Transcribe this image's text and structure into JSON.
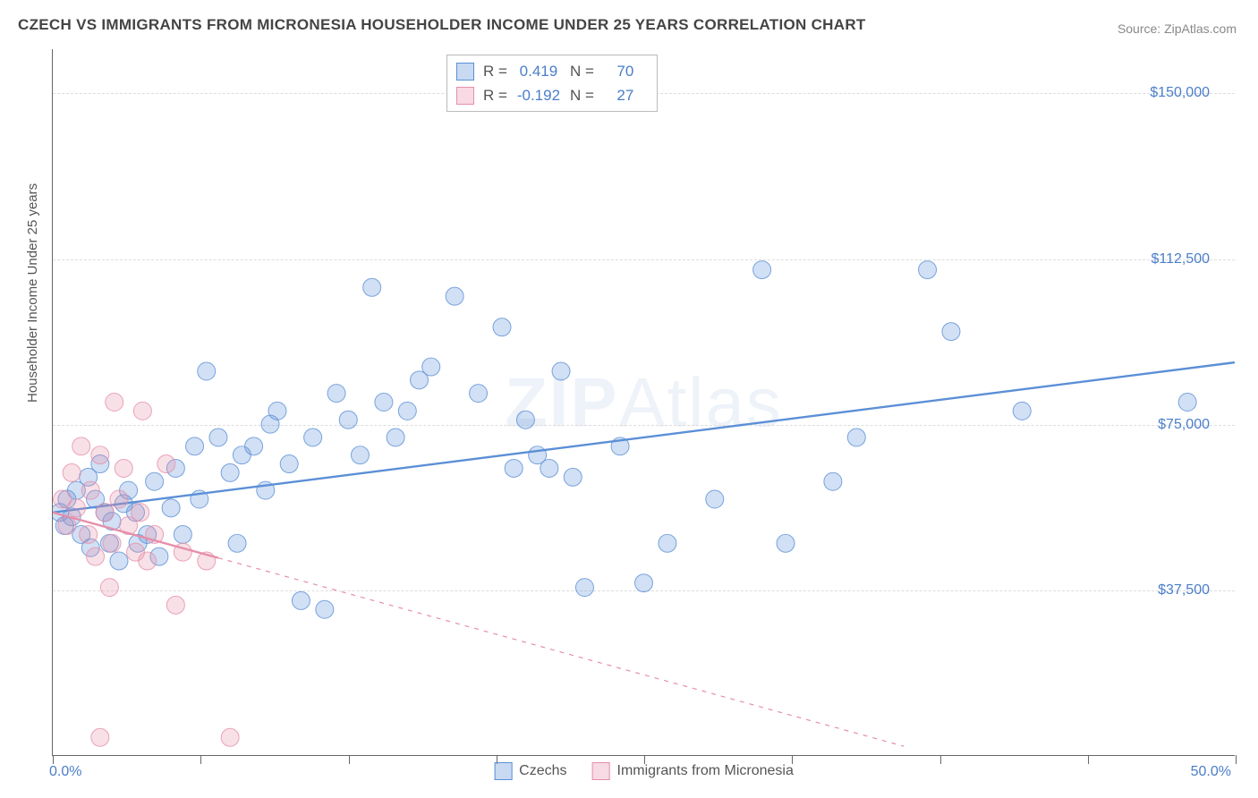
{
  "title": "CZECH VS IMMIGRANTS FROM MICRONESIA HOUSEHOLDER INCOME UNDER 25 YEARS CORRELATION CHART",
  "source": "Source: ZipAtlas.com",
  "watermark": "ZIPAtlas",
  "chart": {
    "type": "scatter",
    "ylabel": "Householder Income Under 25 years",
    "xlim": [
      0,
      50
    ],
    "ylim": [
      0,
      160000
    ],
    "x_label_min": "0.0%",
    "x_label_max": "50.0%",
    "y_ticks": [
      37500,
      75000,
      112500,
      150000
    ],
    "y_tick_labels": [
      "$37,500",
      "$75,000",
      "$112,500",
      "$150,000"
    ],
    "x_ticks_minor": [
      0,
      6.25,
      12.5,
      18.75,
      25,
      31.25,
      37.5,
      43.75,
      50
    ],
    "grid_color": "#dddddd",
    "axis_color": "#666666",
    "background_color": "#ffffff",
    "tick_color": "#4a7ec9",
    "marker_radius": 10,
    "marker_fill_opacity": 0.28,
    "marker_stroke_opacity": 0.8,
    "trend_line_width": 2.4
  },
  "series": [
    {
      "name": "Czechs",
      "color": "#5b8fd6",
      "r_label": "R =",
      "r_value": "0.419",
      "n_label": "N =",
      "n_value": "70",
      "trend": {
        "x1": 0,
        "y1": 55000,
        "x2": 50,
        "y2": 89000,
        "dashed": false
      },
      "points": [
        [
          0.3,
          55000
        ],
        [
          0.5,
          52000
        ],
        [
          0.6,
          58000
        ],
        [
          0.8,
          54000
        ],
        [
          1.0,
          60000
        ],
        [
          1.2,
          50000
        ],
        [
          1.5,
          63000
        ],
        [
          1.6,
          47000
        ],
        [
          1.8,
          58000
        ],
        [
          2.0,
          66000
        ],
        [
          2.2,
          55000
        ],
        [
          2.4,
          48000
        ],
        [
          2.5,
          53000
        ],
        [
          2.8,
          44000
        ],
        [
          3.0,
          57000
        ],
        [
          3.2,
          60000
        ],
        [
          3.5,
          55000
        ],
        [
          3.6,
          48000
        ],
        [
          4.0,
          50000
        ],
        [
          4.3,
          62000
        ],
        [
          4.5,
          45000
        ],
        [
          5.0,
          56000
        ],
        [
          5.2,
          65000
        ],
        [
          5.5,
          50000
        ],
        [
          6.0,
          70000
        ],
        [
          6.2,
          58000
        ],
        [
          6.5,
          87000
        ],
        [
          7.0,
          72000
        ],
        [
          7.5,
          64000
        ],
        [
          7.8,
          48000
        ],
        [
          8.0,
          68000
        ],
        [
          8.5,
          70000
        ],
        [
          9.0,
          60000
        ],
        [
          9.2,
          75000
        ],
        [
          9.5,
          78000
        ],
        [
          10.0,
          66000
        ],
        [
          10.5,
          35000
        ],
        [
          11.0,
          72000
        ],
        [
          11.5,
          33000
        ],
        [
          12.0,
          82000
        ],
        [
          12.5,
          76000
        ],
        [
          13.0,
          68000
        ],
        [
          13.5,
          106000
        ],
        [
          14.0,
          80000
        ],
        [
          14.5,
          72000
        ],
        [
          15.0,
          78000
        ],
        [
          15.5,
          85000
        ],
        [
          16.0,
          88000
        ],
        [
          17.0,
          104000
        ],
        [
          18.0,
          82000
        ],
        [
          19.0,
          97000
        ],
        [
          19.5,
          65000
        ],
        [
          20.0,
          76000
        ],
        [
          20.5,
          68000
        ],
        [
          21.0,
          65000
        ],
        [
          21.5,
          87000
        ],
        [
          22.0,
          63000
        ],
        [
          22.5,
          38000
        ],
        [
          24.0,
          70000
        ],
        [
          25.0,
          39000
        ],
        [
          26.0,
          48000
        ],
        [
          28.0,
          58000
        ],
        [
          30.0,
          110000
        ],
        [
          31.0,
          48000
        ],
        [
          33.0,
          62000
        ],
        [
          34.0,
          72000
        ],
        [
          37.0,
          110000
        ],
        [
          38.0,
          96000
        ],
        [
          41.0,
          78000
        ],
        [
          48.0,
          80000
        ]
      ]
    },
    {
      "name": "Immigrants from Micronesia",
      "color": "#e68faa",
      "r_label": "R =",
      "r_value": "-0.192",
      "n_label": "N =",
      "n_value": "27",
      "trend": {
        "x1": 0,
        "y1": 55000,
        "x2": 36,
        "y2": 2000,
        "dashed_after_x": 7
      },
      "points": [
        [
          0.4,
          58000
        ],
        [
          0.6,
          52000
        ],
        [
          0.8,
          64000
        ],
        [
          1.0,
          56000
        ],
        [
          1.2,
          70000
        ],
        [
          1.5,
          50000
        ],
        [
          1.6,
          60000
        ],
        [
          1.8,
          45000
        ],
        [
          2.0,
          68000
        ],
        [
          2.2,
          55000
        ],
        [
          2.4,
          38000
        ],
        [
          2.5,
          48000
        ],
        [
          2.6,
          80000
        ],
        [
          2.8,
          58000
        ],
        [
          3.0,
          65000
        ],
        [
          3.2,
          52000
        ],
        [
          3.5,
          46000
        ],
        [
          3.7,
          55000
        ],
        [
          3.8,
          78000
        ],
        [
          4.0,
          44000
        ],
        [
          4.3,
          50000
        ],
        [
          4.8,
          66000
        ],
        [
          5.2,
          34000
        ],
        [
          5.5,
          46000
        ],
        [
          6.5,
          44000
        ],
        [
          2.0,
          4000
        ],
        [
          7.5,
          4000
        ]
      ]
    }
  ],
  "legend": {
    "s1": "Czechs",
    "s2": "Immigrants from Micronesia"
  }
}
